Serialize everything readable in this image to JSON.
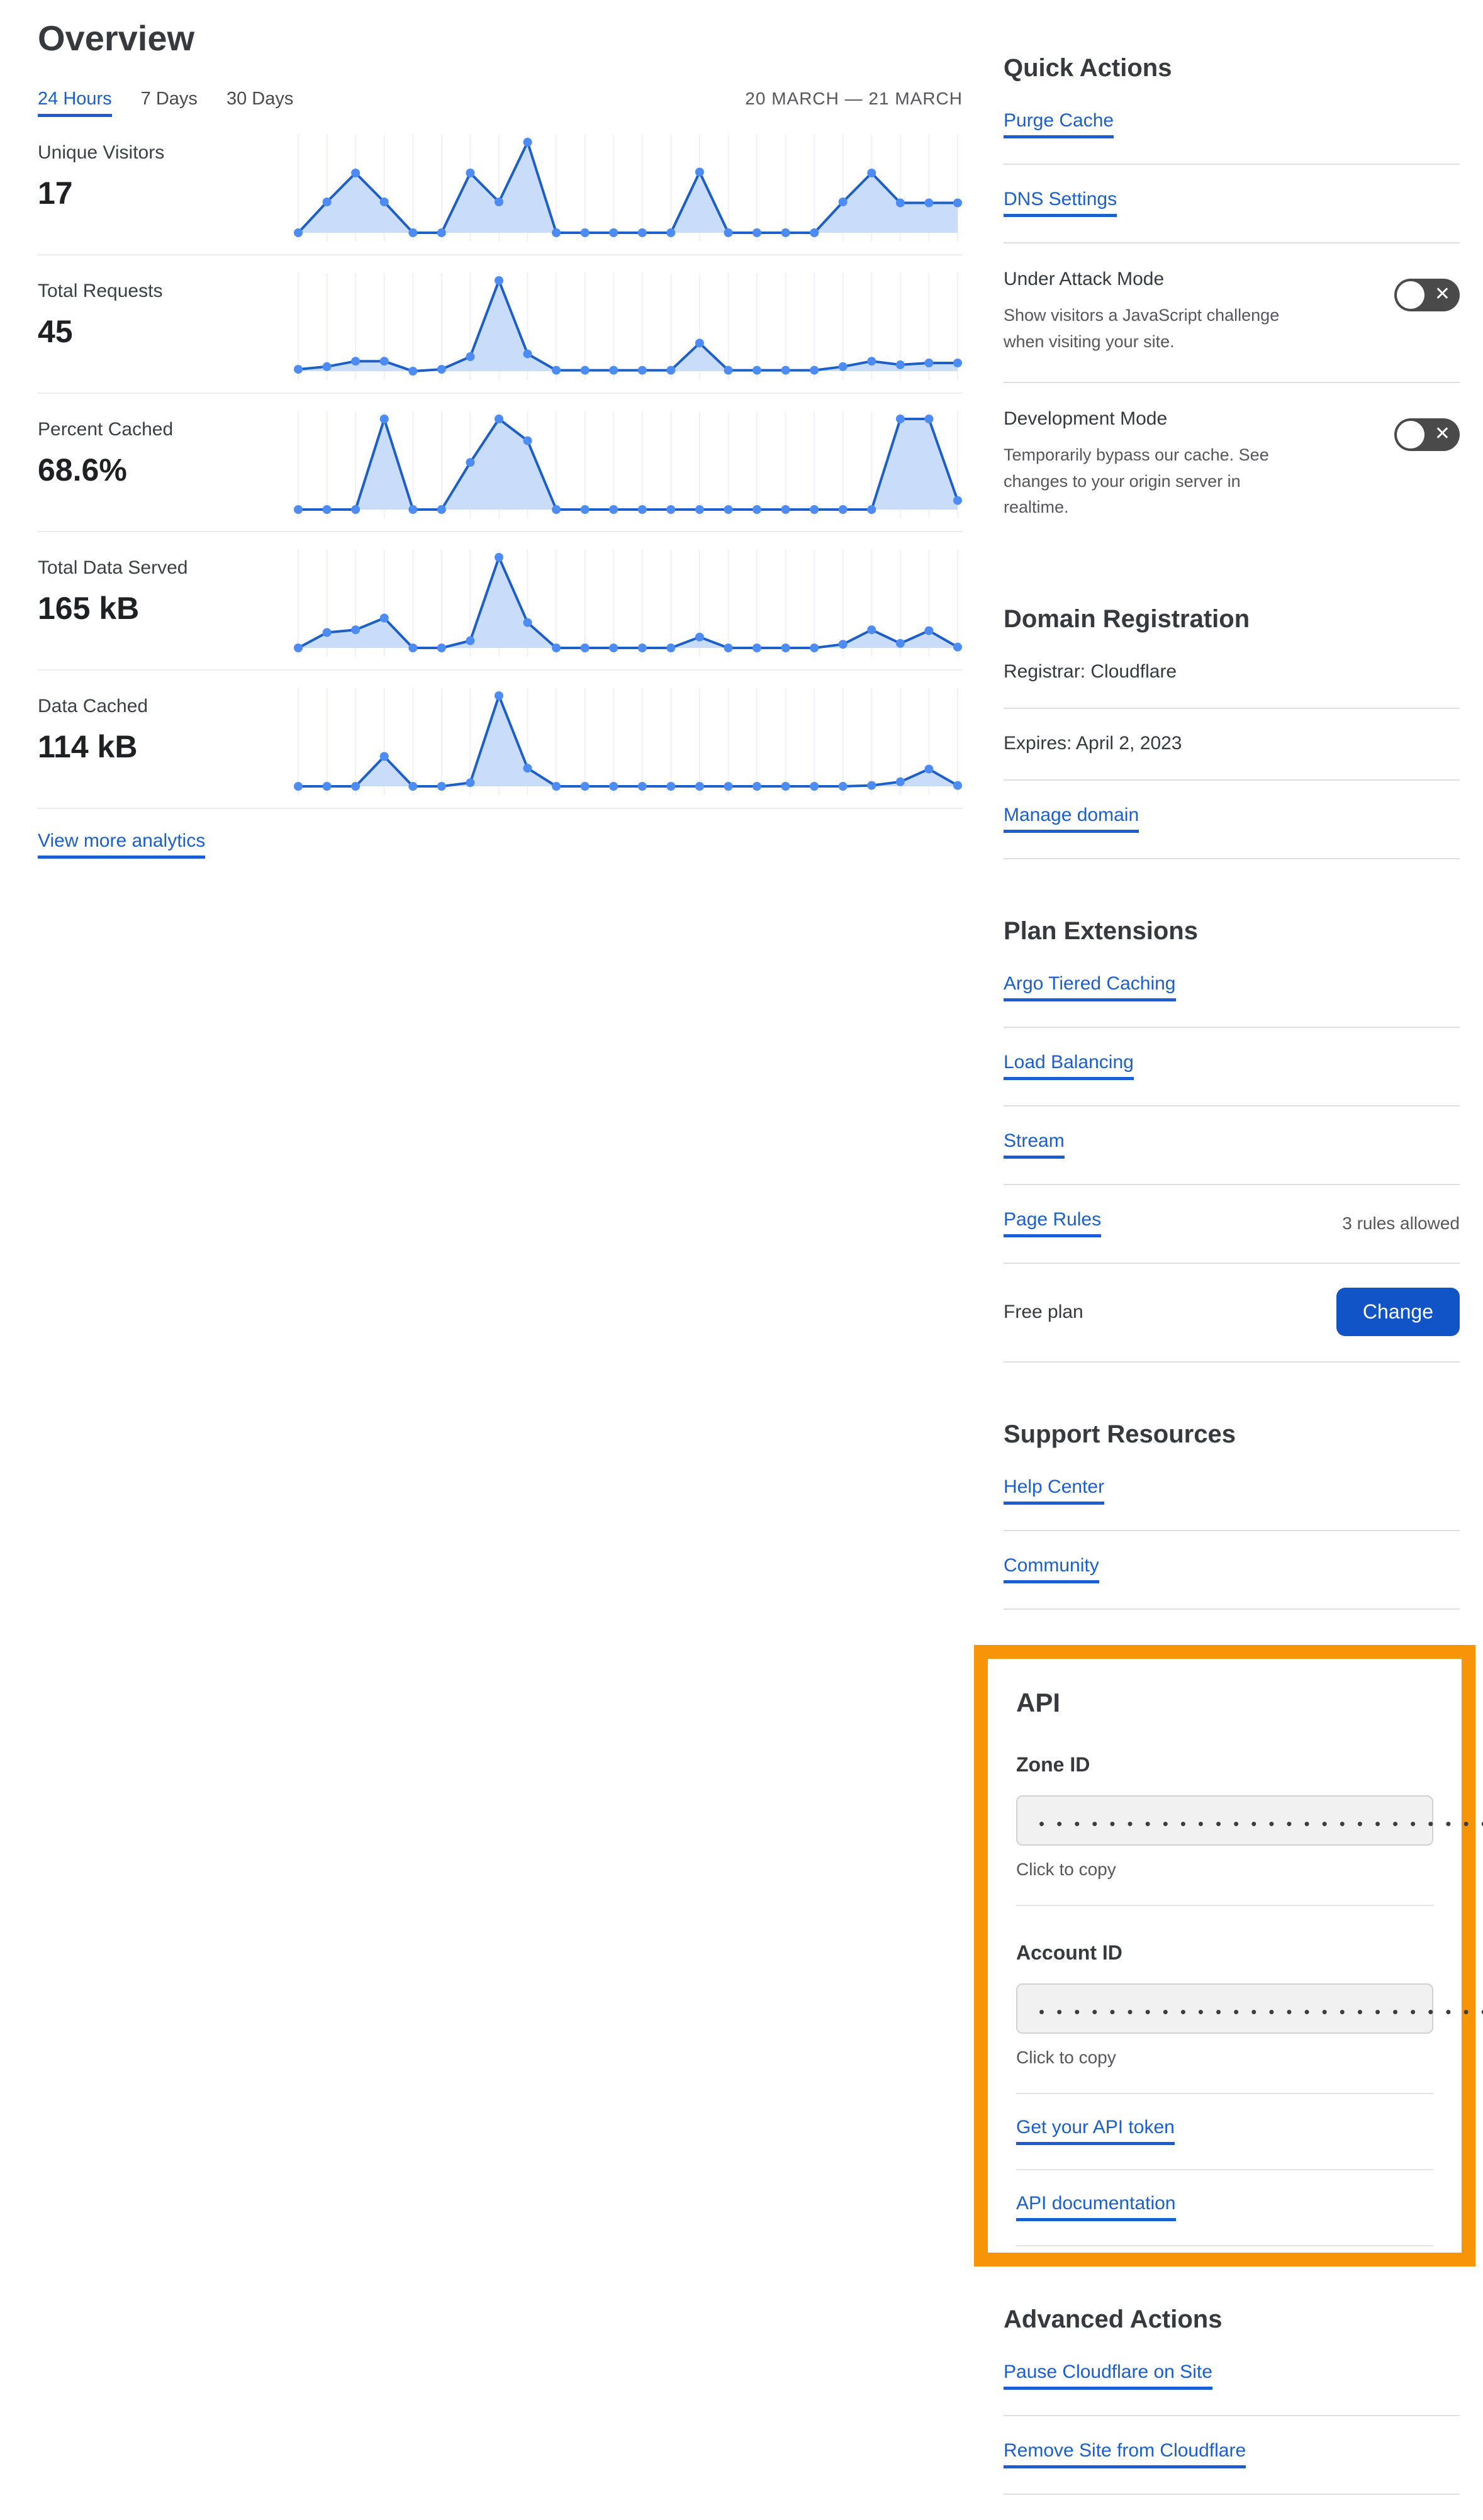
{
  "page": {
    "title": "Overview"
  },
  "toolbar": {
    "tabs": [
      {
        "label": "24 Hours",
        "active": true
      },
      {
        "label": "7 Days",
        "active": false
      },
      {
        "label": "30 Days",
        "active": false
      }
    ],
    "date_range": "20 MARCH — 21 MARCH"
  },
  "chart_data": {
    "type": "area",
    "x": "24 hourly points spanning 20 March – 21 March",
    "x_points": 24,
    "grid": "vertical gridlines only, no axis labels",
    "legend": "none",
    "y_normalization": "values are percent of each sparkline's max height (pixel-estimated)",
    "series": [
      {
        "name": "Unique Visitors",
        "display_value": "17",
        "values": [
          0,
          34,
          66,
          34,
          0,
          0,
          66,
          34,
          100,
          0,
          0,
          0,
          0,
          0,
          67,
          0,
          0,
          0,
          0,
          34,
          66,
          33,
          33,
          33
        ]
      },
      {
        "name": "Total Requests",
        "display_value": "45",
        "values": [
          2,
          5,
          11,
          11,
          0,
          2,
          16,
          100,
          19,
          1,
          1,
          1,
          1,
          1,
          31,
          1,
          1,
          1,
          1,
          5,
          11,
          7,
          9,
          9
        ]
      },
      {
        "name": "Percent Cached",
        "display_value": "68.6%",
        "values": [
          0,
          0,
          0,
          100,
          0,
          0,
          52,
          100,
          76,
          0,
          0,
          0,
          0,
          0,
          0,
          0,
          0,
          0,
          0,
          0,
          0,
          100,
          100,
          10
        ]
      },
      {
        "name": "Total Data Served",
        "display_value": "165 kB",
        "values": [
          0,
          17,
          20,
          33,
          0,
          0,
          8,
          100,
          28,
          0,
          0,
          0,
          0,
          0,
          12,
          0,
          0,
          0,
          0,
          4,
          20,
          5,
          19,
          1
        ]
      },
      {
        "name": "Data Cached",
        "display_value": "114 kB",
        "values": [
          0,
          0,
          0,
          33,
          0,
          0,
          4,
          100,
          20,
          0,
          0,
          0,
          0,
          0,
          0,
          0,
          0,
          0,
          0,
          0,
          1,
          5,
          19,
          1
        ]
      }
    ],
    "footer_link": "View more analytics"
  },
  "quick_actions": {
    "title": "Quick Actions",
    "links": [
      {
        "label": "Purge Cache"
      },
      {
        "label": "DNS Settings"
      }
    ],
    "toggles": [
      {
        "label": "Under Attack Mode",
        "description": "Show visitors a JavaScript challenge when visiting your site.",
        "state": "off"
      },
      {
        "label": "Development Mode",
        "description": "Temporarily bypass our cache. See changes to your origin server in realtime.",
        "state": "off"
      }
    ]
  },
  "domain_registration": {
    "title": "Domain Registration",
    "registrar": "Registrar: Cloudflare",
    "expires": "Expires: April 2, 2023",
    "manage_link": "Manage domain"
  },
  "plan_extensions": {
    "title": "Plan Extensions",
    "links": [
      {
        "label": "Argo Tiered Caching"
      },
      {
        "label": "Load Balancing"
      },
      {
        "label": "Stream"
      },
      {
        "label": "Page Rules",
        "note": "3 rules allowed"
      }
    ],
    "plan_label": "Free plan",
    "change_button": "Change"
  },
  "support_resources": {
    "title": "Support Resources",
    "links": [
      {
        "label": "Help Center"
      },
      {
        "label": "Community"
      }
    ]
  },
  "api": {
    "title": "API",
    "fields": [
      {
        "label": "Zone ID",
        "value_display": "••••••••••••••••••••••••••••",
        "helper": "Click to copy"
      },
      {
        "label": "Account ID",
        "value_display": "••••••••••••••••••••••••••••",
        "helper": "Click to copy"
      }
    ],
    "links": [
      {
        "label": "Get your API token"
      },
      {
        "label": "API documentation"
      }
    ]
  },
  "advanced_actions": {
    "title": "Advanced Actions",
    "links": [
      {
        "label": "Pause Cloudflare on Site"
      },
      {
        "label": "Remove Site from Cloudflare"
      }
    ]
  },
  "colors": {
    "link_blue": "#1a5fd1",
    "button_blue": "#1154c8",
    "chart_line": "#1d5fc8",
    "chart_dot": "#4d8cf5",
    "chart_fill": "#c9dcf9",
    "chart_grid": "#eef1f8",
    "highlight_orange": "#f89408",
    "toggle_off_bg": "#4a4a4a"
  }
}
